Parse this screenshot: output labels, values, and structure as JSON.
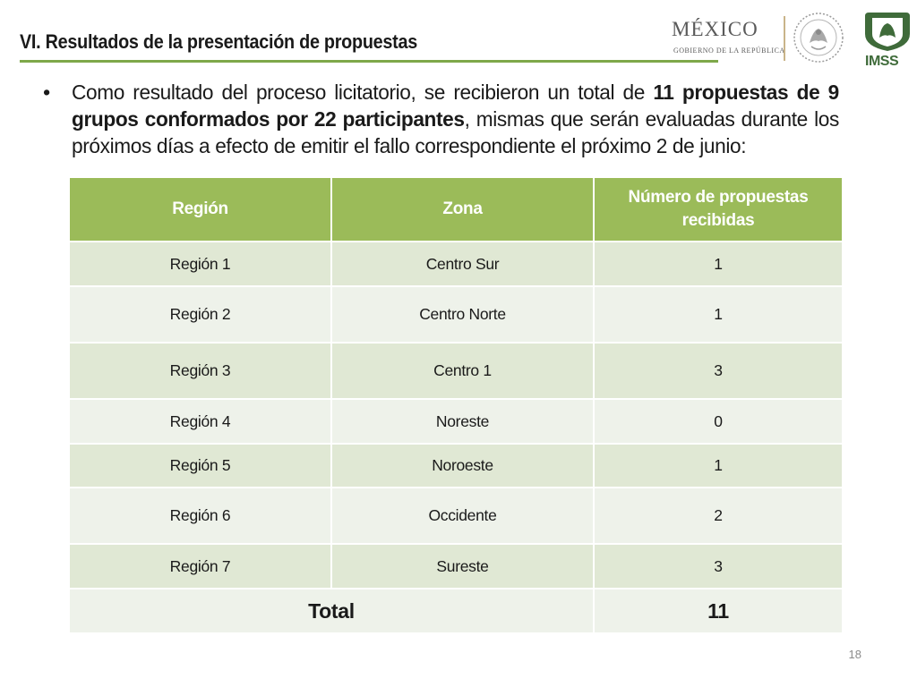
{
  "header": {
    "title": "VI. Resultados de la presentación de propuestas",
    "gov_logo_text": "MÉXICO",
    "gov_logo_subtext": "GOBIERNO DE LA REPÚBLICA",
    "imss_logo_text": "IMSS",
    "accent_color": "#7ea84a"
  },
  "bullet": {
    "part1": "Como resultado del proceso licitatorio, se recibieron un total de ",
    "bold1": "11 propuestas de 9 grupos conformados por 22 participantes",
    "part2": ", mismas que serán evaluadas durante los próximos días a efecto de emitir el fallo correspondiente el próximo 2 de junio:"
  },
  "table": {
    "header_color": "#9bbb59",
    "columns": [
      "Región",
      "Zona",
      "Número de propuestas recibidas"
    ],
    "rows": [
      {
        "region": "Región 1",
        "zona": "Centro Sur",
        "count": "1"
      },
      {
        "region": "Región 2",
        "zona": "Centro Norte",
        "count": "1"
      },
      {
        "region": "Región 3",
        "zona": "Centro 1",
        "count": "3"
      },
      {
        "region": "Región 4",
        "zona": "Noreste",
        "count": "0"
      },
      {
        "region": "Región 5",
        "zona": "Noroeste",
        "count": "1"
      },
      {
        "region": "Región 6",
        "zona": "Occidente",
        "count": "2"
      },
      {
        "region": "Región 7",
        "zona": "Sureste",
        "count": "3"
      }
    ],
    "total_label": "Total",
    "total_value": "11"
  },
  "footer": {
    "page_number": "18"
  }
}
